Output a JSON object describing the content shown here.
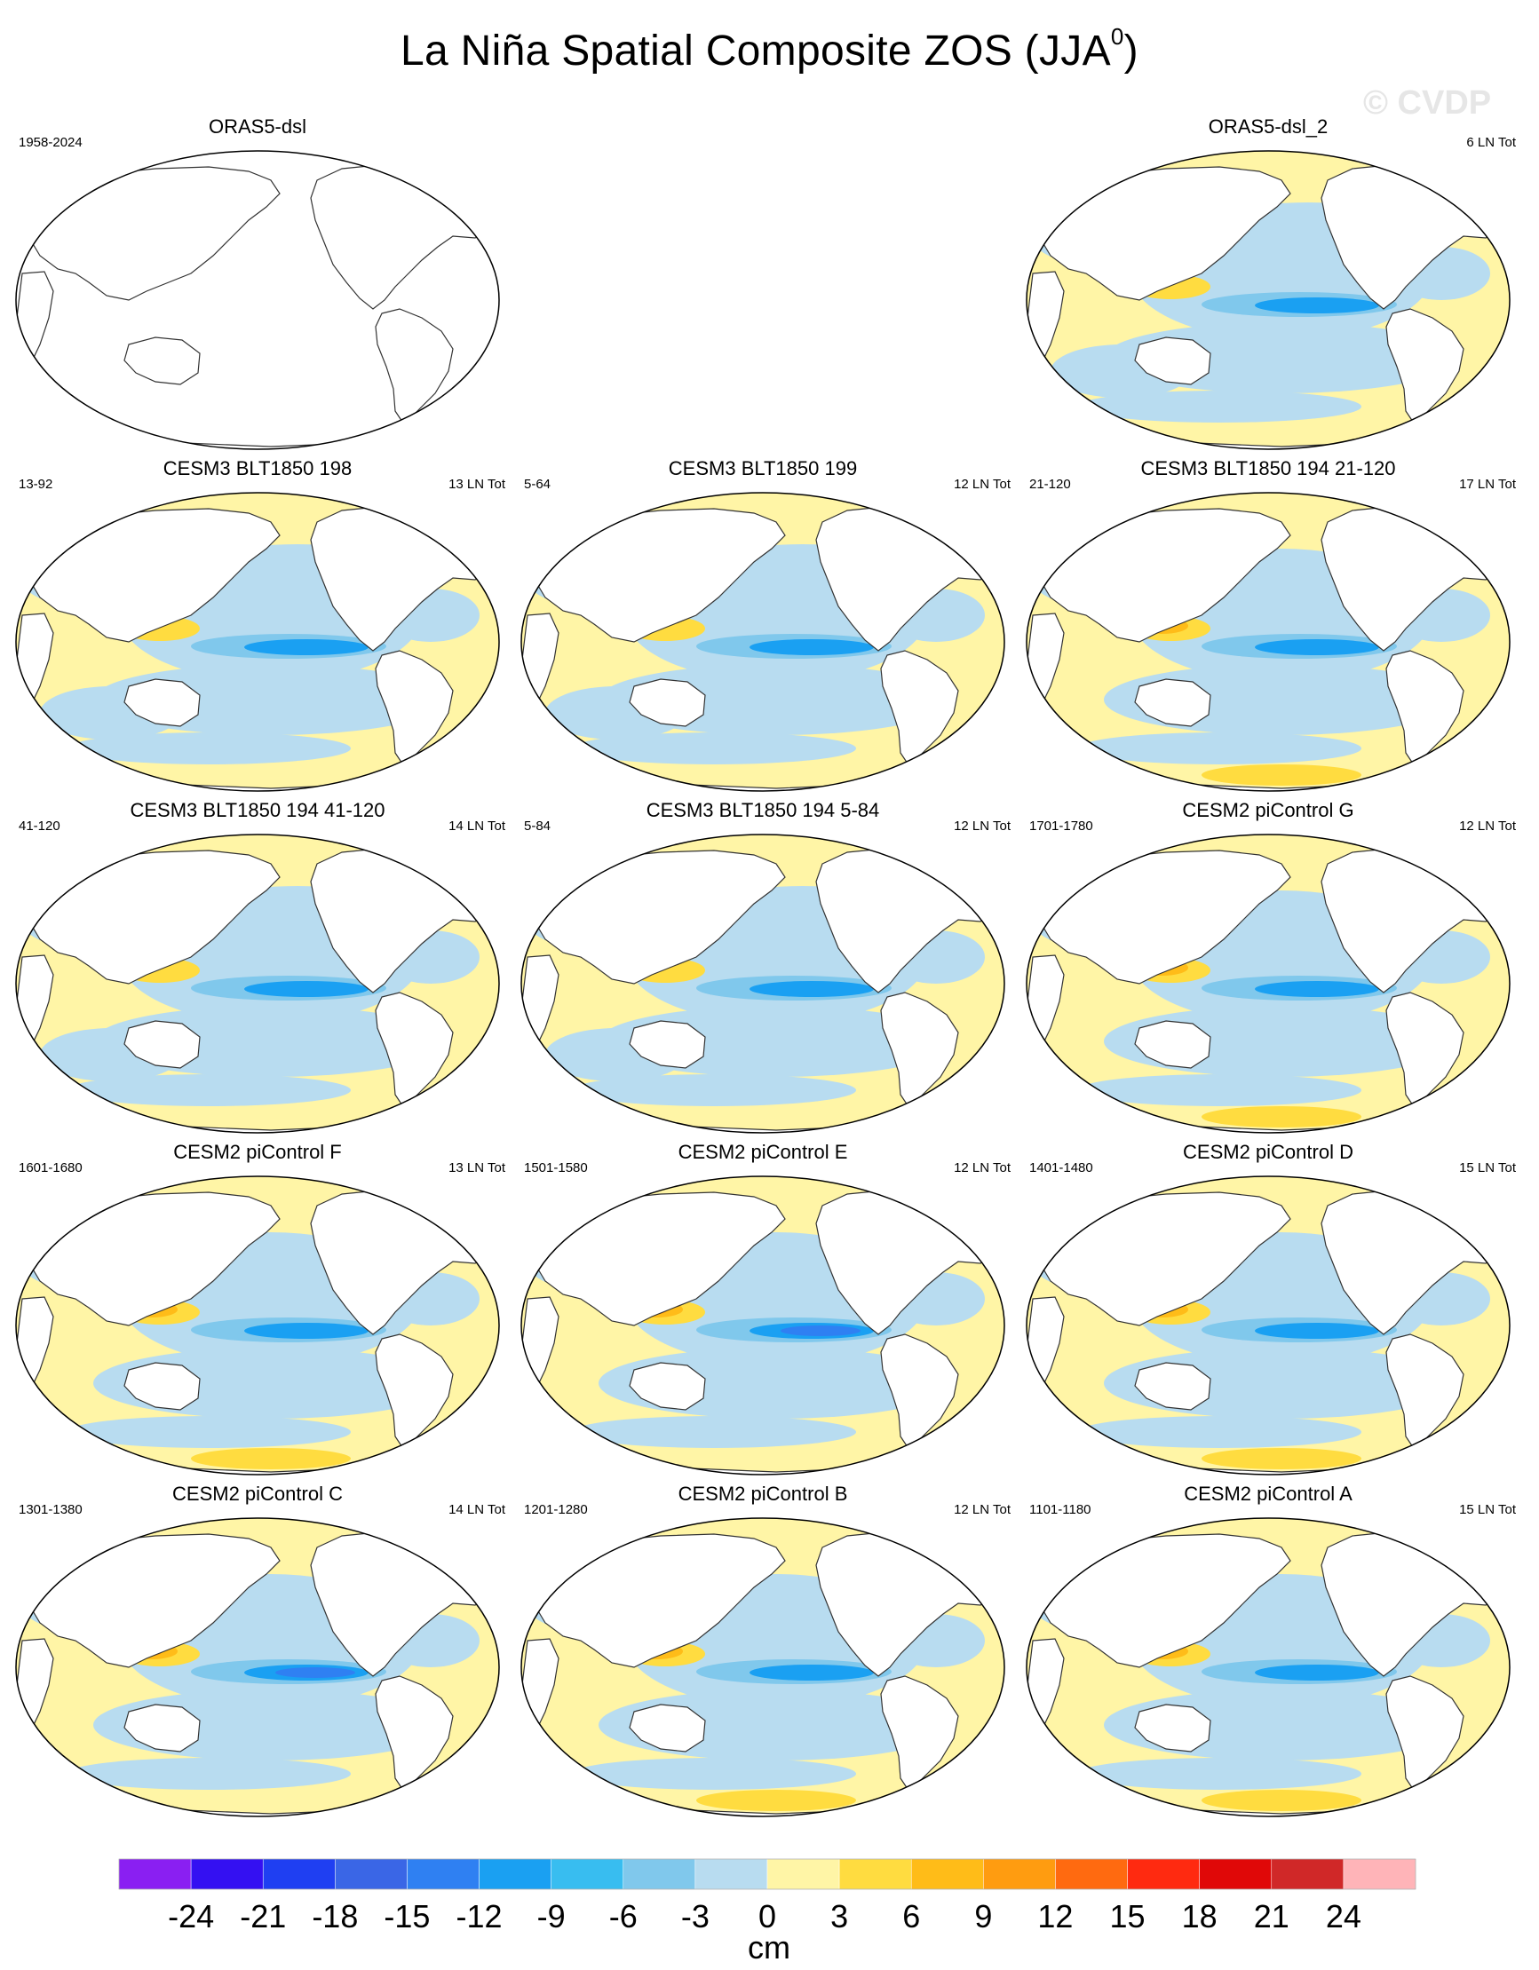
{
  "title": {
    "main": "La Niña Spatial Composite ZOS (JJA",
    "sup": "0",
    "close": ")"
  },
  "watermark": "© CVDP",
  "panels": [
    {
      "title": "ORAS5-dsl",
      "left": "1958-2024",
      "right": "",
      "blank": true
    },
    {
      "title": "ORAS5-dsl_2",
      "left": "",
      "right": "6 LN Tot",
      "blank": false,
      "tint": "blue"
    },
    {
      "title": "CESM3 BLT1850 198",
      "left": "13-92",
      "right": "13 LN Tot",
      "blank": false,
      "tint": "blue"
    },
    {
      "title": "CESM3 BLT1850 199",
      "left": "5-64",
      "right": "12 LN Tot",
      "blank": false,
      "tint": "mix"
    },
    {
      "title": "CESM3 BLT1850 194 21-120",
      "left": "21-120",
      "right": "17 LN Tot",
      "blank": false,
      "tint": "warm"
    },
    {
      "title": "CESM3 BLT1850 194 41-120",
      "left": "41-120",
      "right": "14 LN Tot",
      "blank": false,
      "tint": "mix"
    },
    {
      "title": "CESM3 BLT1850 194 5-84",
      "left": "5-84",
      "right": "12 LN Tot",
      "blank": false,
      "tint": "mix"
    },
    {
      "title": "CESM2 piControl G",
      "left": "1701-1780",
      "right": "12 LN Tot",
      "blank": false,
      "tint": "warm"
    },
    {
      "title": "CESM2 piControl F",
      "left": "1601-1680",
      "right": "13 LN Tot",
      "blank": false,
      "tint": "warm"
    },
    {
      "title": "CESM2 piControl E",
      "left": "1501-1580",
      "right": "12 LN Tot",
      "blank": false,
      "tint": "strong"
    },
    {
      "title": "CESM2 piControl D",
      "left": "1401-1480",
      "right": "15 LN Tot",
      "blank": false,
      "tint": "warm"
    },
    {
      "title": "CESM2 piControl C",
      "left": "1301-1380",
      "right": "14 LN Tot",
      "blank": false,
      "tint": "strong"
    },
    {
      "title": "CESM2 piControl B",
      "left": "1201-1280",
      "right": "12 LN Tot",
      "blank": false,
      "tint": "warm"
    },
    {
      "title": "CESM2 piControl A",
      "left": "1101-1180",
      "right": "15 LN Tot",
      "blank": false,
      "tint": "warm"
    }
  ],
  "colorbar": {
    "colors": [
      "#8a1ff2",
      "#3410f2",
      "#1f3ff2",
      "#3a66e6",
      "#2f80f2",
      "#1aa0f2",
      "#38bdf0",
      "#80c8ec",
      "#b8dcf0",
      "#fff5a6",
      "#ffdc40",
      "#ffbc18",
      "#ff9c10",
      "#ff6a10",
      "#ff2a10",
      "#e00808",
      "#d02828",
      "#ffb4b8"
    ],
    "labels": [
      "-24",
      "-21",
      "-18",
      "-15",
      "-12",
      "-9",
      "-6",
      "-3",
      "0",
      "3",
      "6",
      "9",
      "12",
      "15",
      "18",
      "21",
      "24"
    ],
    "units": "cm"
  }
}
